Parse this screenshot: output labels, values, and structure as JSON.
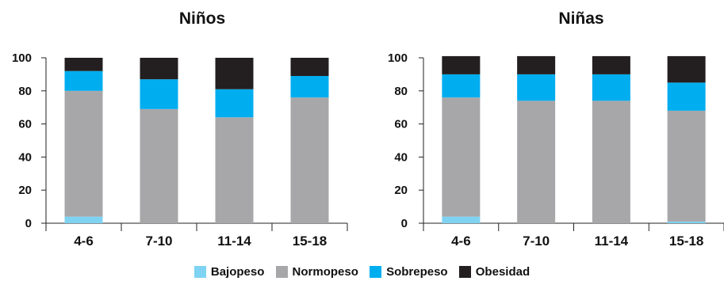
{
  "colors": {
    "Bajopeso": "#7fd3f2",
    "Normopeso": "#a7a7a9",
    "Sobrepeso": "#00adef",
    "Obesidad": "#231f20"
  },
  "legend": [
    "Bajopeso",
    "Normopeso",
    "Sobrepeso",
    "Obesidad"
  ],
  "chart_data": [
    {
      "type": "bar",
      "stacked": true,
      "title": "Niños",
      "categories": [
        "4-6",
        "7-10",
        "11-14",
        "15-18"
      ],
      "yticks": [
        0,
        20,
        40,
        60,
        80,
        100
      ],
      "ylim": [
        0,
        100
      ],
      "grid": false,
      "legend_position": "bottom-center",
      "series": [
        {
          "name": "Bajopeso",
          "values": [
            4,
            0,
            0,
            0
          ]
        },
        {
          "name": "Normopeso",
          "values": [
            76,
            69,
            64,
            76
          ]
        },
        {
          "name": "Sobrepeso",
          "values": [
            12,
            18,
            17,
            13
          ]
        },
        {
          "name": "Obesidad",
          "values": [
            8,
            13,
            19,
            11
          ]
        }
      ]
    },
    {
      "type": "bar",
      "stacked": true,
      "title": "Niñas",
      "categories": [
        "4-6",
        "7-10",
        "11-14",
        "15-18"
      ],
      "yticks": [
        0,
        20,
        40,
        60,
        80,
        100
      ],
      "ylim": [
        0,
        100
      ],
      "grid": false,
      "legend_position": "bottom-center",
      "series": [
        {
          "name": "Bajopeso",
          "values": [
            4,
            0,
            0,
            1
          ]
        },
        {
          "name": "Normopeso",
          "values": [
            72,
            74,
            74,
            67
          ]
        },
        {
          "name": "Sobrepeso",
          "values": [
            14,
            16,
            16,
            17
          ]
        },
        {
          "name": "Obesidad",
          "values": [
            11,
            11,
            11,
            16
          ]
        }
      ]
    }
  ]
}
